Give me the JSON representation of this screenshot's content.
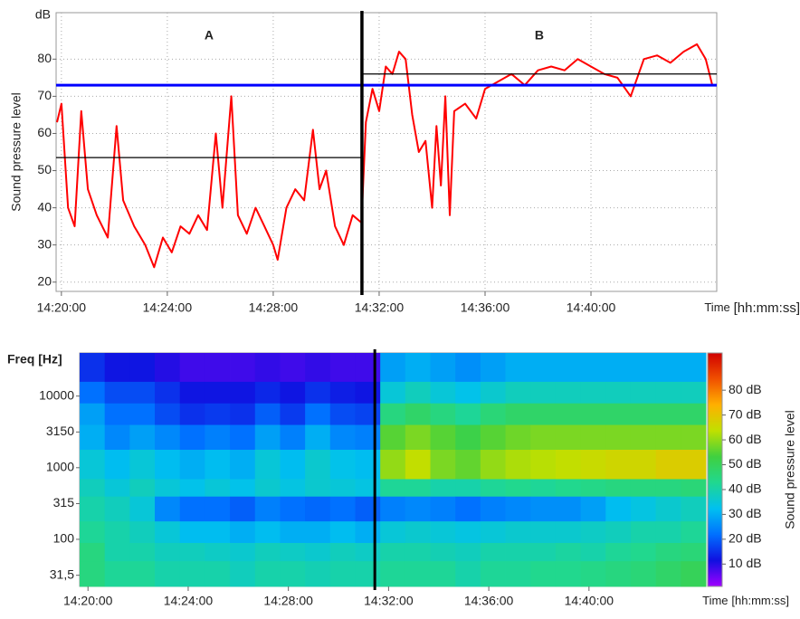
{
  "chart_data": [
    {
      "type": "line",
      "ylabel": "Sound pressure level",
      "y_unit": "dB",
      "xlabel": "Time",
      "x_unit": "[hh:mm:ss]",
      "xlim": [
        "14:19:48",
        "14:44:45"
      ],
      "xticks": [
        "14:20:00",
        "14:24:00",
        "14:28:00",
        "14:32:00",
        "14:36:00",
        "14:40:00"
      ],
      "ylim": [
        17.5,
        92.5
      ],
      "yticks": [
        20,
        30,
        40,
        50,
        60,
        70,
        80
      ],
      "grid": true,
      "divider": "14:31:21",
      "annotations": [
        {
          "text": "A"
        },
        {
          "text": "B"
        }
      ],
      "reference_lines": [
        {
          "value": 73,
          "color": "#0000ff",
          "from": "14:19:48",
          "to": "14:44:45"
        },
        {
          "value": 53.5,
          "color": "#000000",
          "from": "14:19:48",
          "to": "14:31:21"
        },
        {
          "value": 76,
          "color": "#000000",
          "from": "14:31:21",
          "to": "14:44:45"
        }
      ],
      "x": [
        "14:19:50",
        "14:20:00",
        "14:20:15",
        "14:20:30",
        "14:20:45",
        "14:21:00",
        "14:21:20",
        "14:21:45",
        "14:22:05",
        "14:22:20",
        "14:22:45",
        "14:23:10",
        "14:23:30",
        "14:23:50",
        "14:24:10",
        "14:24:30",
        "14:24:50",
        "14:25:10",
        "14:25:30",
        "14:25:50",
        "14:26:05",
        "14:26:25",
        "14:26:40",
        "14:27:00",
        "14:27:20",
        "14:27:40",
        "14:28:00",
        "14:28:10",
        "14:28:30",
        "14:28:50",
        "14:29:10",
        "14:29:30",
        "14:29:45",
        "14:30:00",
        "14:30:20",
        "14:30:40",
        "14:31:00",
        "14:31:20",
        "14:31:30",
        "14:31:45",
        "14:32:00",
        "14:32:15",
        "14:32:30",
        "14:32:45",
        "14:33:00",
        "14:33:15",
        "14:33:30",
        "14:33:45",
        "14:34:00",
        "14:34:10",
        "14:34:20",
        "14:34:30",
        "14:34:40",
        "14:34:50",
        "14:35:15",
        "14:35:40",
        "14:36:00",
        "14:36:30",
        "14:37:00",
        "14:37:30",
        "14:38:00",
        "14:38:30",
        "14:39:00",
        "14:39:30",
        "14:40:00",
        "14:40:30",
        "14:41:00",
        "14:41:30",
        "14:42:00",
        "14:42:30",
        "14:43:00",
        "14:43:30",
        "14:44:00",
        "14:44:20",
        "14:44:35"
      ],
      "series": [
        {
          "color": "#ff0000",
          "values": [
            63,
            68,
            40,
            35,
            66,
            45,
            38,
            32,
            62,
            42,
            35,
            30,
            24,
            32,
            28,
            35,
            33,
            38,
            34,
            60,
            40,
            70,
            38,
            33,
            40,
            35,
            30,
            26,
            40,
            45,
            42,
            61,
            45,
            50,
            35,
            30,
            38,
            36,
            63,
            72,
            66,
            78,
            76,
            82,
            80,
            65,
            55,
            58,
            40,
            62,
            46,
            70,
            38,
            66,
            68,
            64,
            72,
            74,
            76,
            73,
            77,
            78,
            77,
            80,
            78,
            76,
            75,
            70,
            80,
            81,
            79,
            82,
            84,
            80,
            73
          ]
        }
      ]
    },
    {
      "type": "heatmap",
      "ylabel": "Freq [Hz]",
      "xlabel": "Time",
      "x_unit": "[hh:mm:ss]",
      "zlabel": "Sound pressure level",
      "xlim": [
        "14:19:40",
        "14:44:40"
      ],
      "xticks": [
        "14:20:00",
        "14:24:00",
        "14:28:00",
        "14:32:00",
        "14:36:00",
        "14:40:00"
      ],
      "ylim": [
        22,
        40000
      ],
      "log_y": true,
      "yticks": [
        10000,
        3150,
        1000,
        315,
        100,
        {
          "value": 31.5,
          "label": "31,5"
        }
      ],
      "zlim": [
        1,
        95
      ],
      "zticks": [
        {
          "value": 80,
          "label": "80 dB"
        },
        {
          "value": 70,
          "label": "70 dB"
        },
        {
          "value": 60,
          "label": "60 dB"
        },
        {
          "value": 50,
          "label": "50 dB"
        },
        {
          "value": 40,
          "label": "40 dB"
        },
        {
          "value": 30,
          "label": "30 dB"
        },
        {
          "value": 20,
          "label": "20 dB"
        },
        {
          "value": 10,
          "label": "10 dB"
        }
      ],
      "colorscale": [
        "#a000ff",
        "#1010e0",
        "#0070ff",
        "#00c0f0",
        "#20d890",
        "#40d040",
        "#c0e000",
        "#ffb000",
        "#f05000",
        "#d00000"
      ],
      "divider": "14:31:27",
      "x_edges": [
        "14:19:40",
        "14:20:40",
        "14:21:40",
        "14:22:40",
        "14:23:40",
        "14:24:40",
        "14:25:40",
        "14:26:40",
        "14:27:40",
        "14:28:40",
        "14:29:40",
        "14:30:40",
        "14:31:40",
        "14:32:40",
        "14:33:40",
        "14:34:40",
        "14:35:40",
        "14:36:40",
        "14:37:40",
        "14:38:40",
        "14:39:40",
        "14:40:40",
        "14:41:40",
        "14:42:40",
        "14:43:40",
        "14:44:40"
      ],
      "y_edges": [
        22,
        50,
        90,
        180,
        400,
        700,
        1800,
        4000,
        8000,
        16000,
        40000
      ],
      "z": [
        [
          45,
          45,
          42,
          40,
          38,
          35,
          30,
          28,
          22,
          15
        ],
        [
          42,
          40,
          40,
          38,
          35,
          32,
          25,
          22,
          18,
          12
        ],
        [
          42,
          40,
          38,
          35,
          38,
          35,
          28,
          22,
          18,
          12
        ],
        [
          40,
          38,
          35,
          25,
          35,
          32,
          25,
          18,
          15,
          10
        ],
        [
          40,
          38,
          32,
          22,
          33,
          30,
          22,
          15,
          12,
          8
        ],
        [
          40,
          37,
          32,
          22,
          35,
          32,
          24,
          16,
          12,
          8
        ],
        [
          38,
          36,
          30,
          20,
          33,
          30,
          22,
          15,
          12,
          8
        ],
        [
          40,
          38,
          32,
          24,
          36,
          35,
          28,
          20,
          14,
          9
        ],
        [
          40,
          37,
          30,
          22,
          34,
          32,
          24,
          16,
          12,
          8
        ],
        [
          39,
          36,
          30,
          21,
          36,
          36,
          30,
          22,
          15,
          9
        ],
        [
          40,
          38,
          32,
          22,
          35,
          33,
          25,
          18,
          13,
          8
        ],
        [
          40,
          37,
          30,
          20,
          34,
          32,
          24,
          17,
          12,
          8
        ],
        [
          42,
          40,
          35,
          24,
          42,
          60,
          55,
          45,
          35,
          28
        ],
        [
          42,
          40,
          36,
          25,
          42,
          64,
          58,
          48,
          38,
          30
        ],
        [
          42,
          39,
          35,
          24,
          40,
          58,
          55,
          45,
          35,
          28
        ],
        [
          40,
          38,
          34,
          22,
          40,
          56,
          52,
          42,
          33,
          26
        ],
        [
          42,
          40,
          35,
          24,
          42,
          60,
          55,
          46,
          36,
          28
        ],
        [
          42,
          40,
          36,
          25,
          43,
          62,
          57,
          48,
          38,
          30
        ],
        [
          43,
          40,
          36,
          26,
          42,
          63,
          58,
          48,
          38,
          30
        ],
        [
          43,
          41,
          36,
          26,
          43,
          64,
          58,
          48,
          38,
          30
        ],
        [
          44,
          40,
          37,
          28,
          44,
          65,
          58,
          48,
          38,
          30
        ],
        [
          45,
          42,
          38,
          32,
          45,
          66,
          58,
          48,
          38,
          30
        ],
        [
          46,
          43,
          40,
          34,
          45,
          66,
          58,
          48,
          38,
          30
        ],
        [
          48,
          45,
          40,
          36,
          45,
          68,
          58,
          48,
          38,
          30
        ],
        [
          50,
          46,
          42,
          38,
          46,
          68,
          58,
          48,
          38,
          30
        ]
      ]
    }
  ]
}
